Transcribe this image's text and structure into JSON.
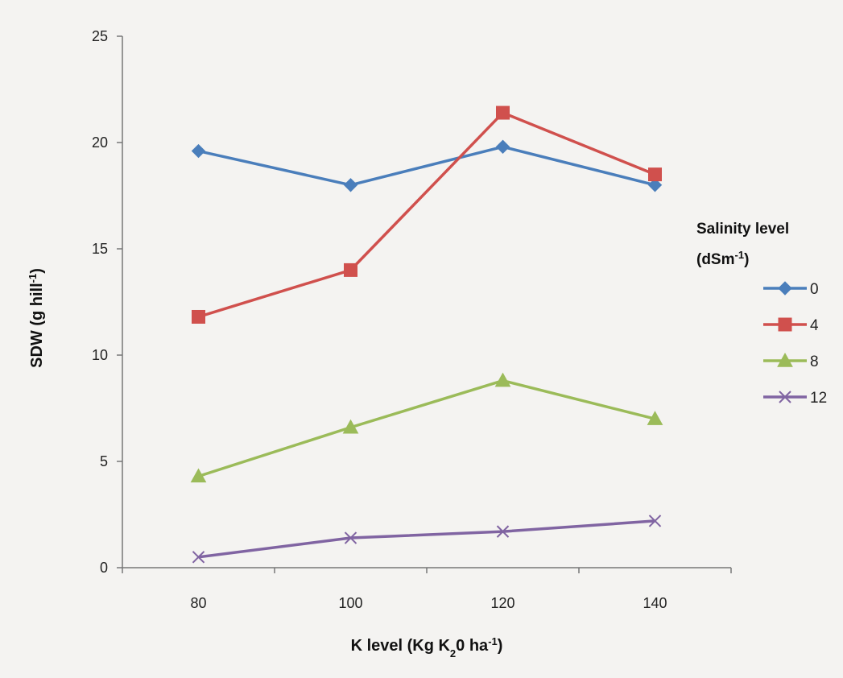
{
  "chart_data": {
    "type": "line",
    "title": "",
    "xlabel": "K level (Kg K2O ha-1)",
    "xlabel_parts": {
      "pre": "K level (Kg K",
      "sub": "2",
      "mid": "0 ha",
      "sup": "-1",
      "post": ")"
    },
    "ylabel": "SDW (g hill-1)",
    "ylabel_parts": {
      "pre": "SDW (g hill",
      "sup": "-1",
      "post": ")"
    },
    "categories": [
      "80",
      "100",
      "120",
      "140"
    ],
    "ylim": [
      0,
      25
    ],
    "yticks": [
      "0",
      "5",
      "10",
      "15",
      "20",
      "25"
    ],
    "grid": false,
    "legend": {
      "position": "right",
      "title_line1": "Salinity level",
      "title_line2_parts": {
        "pre": "(dSm",
        "sup": "-1",
        "post": ")"
      }
    },
    "series": [
      {
        "name": "0",
        "values": [
          19.6,
          18.0,
          19.8,
          18.0
        ],
        "color": "#4a7ebb",
        "marker": "diamond"
      },
      {
        "name": "4",
        "values": [
          11.8,
          14.0,
          21.4,
          18.5
        ],
        "color": "#d0504d",
        "marker": "square"
      },
      {
        "name": "8",
        "values": [
          4.3,
          6.6,
          8.8,
          7.0
        ],
        "color": "#9bbb59",
        "marker": "triangle"
      },
      {
        "name": "12",
        "values": [
          0.5,
          1.4,
          1.7,
          2.2
        ],
        "color": "#8064a2",
        "marker": "x"
      }
    ]
  }
}
